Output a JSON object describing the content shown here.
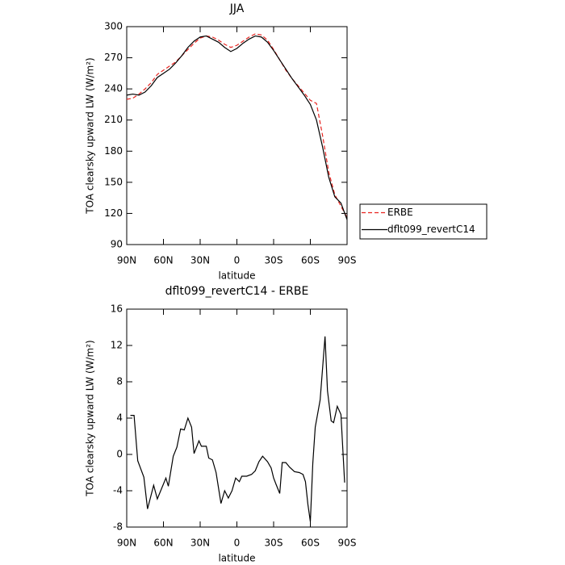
{
  "chart_data": [
    {
      "type": "line",
      "title": "JJA",
      "xlabel": "latitude",
      "ylabel": "TOA clearsky upward LW (W/m²)",
      "x": [
        90,
        85,
        80,
        75,
        70,
        65,
        60,
        55,
        50,
        45,
        40,
        35,
        30,
        25,
        20,
        15,
        10,
        5,
        0,
        -5,
        -10,
        -15,
        -20,
        -25,
        -30,
        -35,
        -40,
        -45,
        -50,
        -55,
        -60,
        -65,
        -70,
        -75,
        -80,
        -85,
        -90
      ],
      "series": [
        {
          "name": "ERBE",
          "color": "#e8231f",
          "line_style": "dashed",
          "values": [
            230,
            231,
            235,
            240,
            246,
            254,
            258,
            262,
            266,
            272,
            278,
            284,
            289,
            291,
            290,
            287,
            283,
            280,
            282,
            286,
            290,
            293,
            292,
            287,
            278,
            268,
            258,
            250,
            243,
            236,
            229,
            226,
            195,
            160,
            138,
            127,
            116
          ]
        },
        {
          "name": "dflt099_revertC14",
          "color": "#000000",
          "line_style": "solid",
          "values": [
            234,
            235,
            234,
            237,
            243,
            251,
            255,
            259,
            265,
            272,
            280,
            286,
            290,
            291,
            288,
            285,
            280,
            276,
            279,
            284,
            288,
            291,
            290,
            285,
            277,
            268,
            259,
            250,
            242,
            234,
            225,
            210,
            184,
            155,
            136,
            130,
            114
          ]
        }
      ],
      "xlim": [
        90,
        -90
      ],
      "xticks": [
        {
          "value": 90,
          "label": "90N"
        },
        {
          "value": 60,
          "label": "60N"
        },
        {
          "value": 30,
          "label": "30N"
        },
        0,
        {
          "value": -30,
          "label": "30S"
        },
        {
          "value": -60,
          "label": "60S"
        },
        {
          "value": -90,
          "label": "90S"
        }
      ],
      "ylim": [
        90,
        300
      ],
      "yticks": [
        90,
        120,
        150,
        180,
        210,
        240,
        270,
        300
      ],
      "legend": "right"
    },
    {
      "type": "line",
      "title": "dflt099_revertC14 - ERBE",
      "xlabel": "latitude",
      "ylabel": "TOA clearsky upward LW (W/m²)",
      "x": [
        87,
        84,
        81,
        76,
        73,
        68,
        65,
        58,
        56,
        52,
        49,
        46,
        43,
        40,
        37,
        35,
        31,
        29,
        25,
        23,
        20,
        17,
        13,
        10,
        7,
        4,
        1,
        -2,
        -4,
        -8,
        -12,
        -15,
        -18,
        -21,
        -25,
        -28,
        -30,
        -32,
        -35,
        -37,
        -40,
        -43,
        -47,
        -51,
        -54,
        -56,
        -58,
        -60,
        -62,
        -64,
        -68,
        -72,
        -74,
        -77,
        -79,
        -82,
        -85,
        -88
      ],
      "series": [
        {
          "name": "dflt099_revertC14 - ERBE",
          "color": "#000000",
          "line_style": "solid",
          "values": [
            4.3,
            4.3,
            -0.7,
            -2.5,
            -6,
            -3.4,
            -4.9,
            -2.6,
            -3.5,
            -0.2,
            0.8,
            2.8,
            2.7,
            4,
            3,
            0.1,
            1.5,
            0.9,
            0.9,
            -0.4,
            -0.6,
            -2,
            -5.4,
            -4,
            -4.8,
            -4,
            -2.6,
            -3,
            -2.4,
            -2.4,
            -2.2,
            -1.8,
            -0.8,
            -0.2,
            -0.8,
            -1.5,
            -2.6,
            -3.3,
            -4.3,
            -0.9,
            -0.9,
            -1.4,
            -1.9,
            -2,
            -2.2,
            -3,
            -5.5,
            -7.4,
            -1,
            3,
            6,
            13,
            7,
            3.7,
            3.5,
            5.3,
            4.4,
            -3.1
          ]
        }
      ],
      "xlim": [
        90,
        -90
      ],
      "xticks": [
        {
          "value": 90,
          "label": "90N"
        },
        {
          "value": 60,
          "label": "60N"
        },
        {
          "value": 30,
          "label": "30N"
        },
        0,
        {
          "value": -30,
          "label": "30S"
        },
        {
          "value": -60,
          "label": "60S"
        },
        {
          "value": -90,
          "label": "90S"
        }
      ],
      "ylim": [
        -8,
        16
      ],
      "yticks": [
        -8,
        -4,
        0,
        4,
        8,
        12,
        16
      ]
    }
  ]
}
